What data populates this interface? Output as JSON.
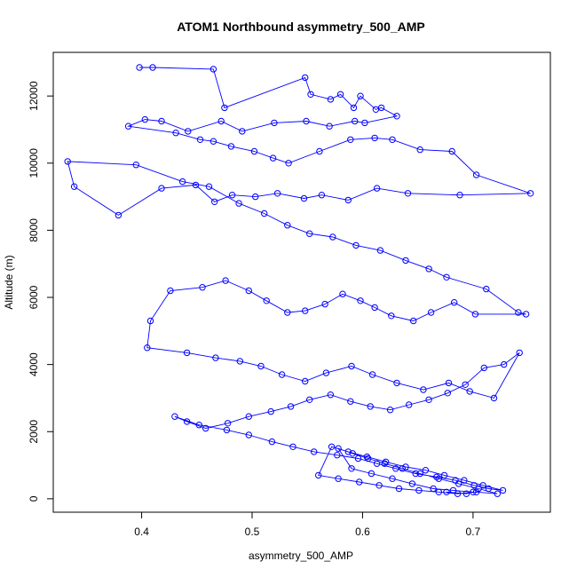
{
  "chart_data": {
    "type": "scatter",
    "title": "ATOM1 Northbound asymmetry_500_AMP",
    "xlabel": "asymmetry_500_AMP",
    "ylabel": "Altitude (m)",
    "xlim": [
      0.32,
      0.77
    ],
    "ylim": [
      -400,
      13300
    ],
    "xticks": [
      0.4,
      0.5,
      0.6,
      0.7
    ],
    "yticks": [
      0,
      2000,
      4000,
      6000,
      8000,
      10000,
      12000
    ],
    "color": "#0000ff",
    "markers": "open-circle",
    "connected": true,
    "grid": false,
    "series": [
      {
        "x": [
          0.398,
          0.41,
          0.465,
          0.475,
          0.548,
          0.553,
          0.571,
          0.58,
          0.592,
          0.598,
          0.612,
          0.617,
          0.631,
          0.602,
          0.593,
          0.57,
          0.549,
          0.52,
          0.491,
          0.472,
          0.442,
          0.418,
          0.403,
          0.388,
          0.431,
          0.453,
          0.465,
          0.481,
          0.502,
          0.519,
          0.533,
          0.561,
          0.589,
          0.611,
          0.627,
          0.652,
          0.681,
          0.703,
          0.752,
          0.688,
          0.641,
          0.613,
          0.587,
          0.563,
          0.547,
          0.523,
          0.503,
          0.482,
          0.466,
          0.449,
          0.418,
          0.379,
          0.339,
          0.333,
          0.395,
          0.437,
          0.461,
          0.488,
          0.511,
          0.532,
          0.552,
          0.573,
          0.594,
          0.616,
          0.639,
          0.66,
          0.676,
          0.712,
          0.741,
          0.748,
          0.702,
          0.683,
          0.662,
          0.646,
          0.626,
          0.611,
          0.598,
          0.582,
          0.566,
          0.548,
          0.532,
          0.513,
          0.497,
          0.476,
          0.455,
          0.426,
          0.408,
          0.405,
          0.441,
          0.467,
          0.489,
          0.508,
          0.527,
          0.548,
          0.567,
          0.59,
          0.609,
          0.631,
          0.655,
          0.678,
          0.697,
          0.719,
          0.742,
          0.728,
          0.71,
          0.693,
          0.677,
          0.66,
          0.642,
          0.625,
          0.607,
          0.589,
          0.571,
          0.552,
          0.535,
          0.517,
          0.497,
          0.478,
          0.458,
          0.441,
          0.43,
          0.452,
          0.477,
          0.497,
          0.518,
          0.537,
          0.556,
          0.577,
          0.596,
          0.613,
          0.63,
          0.648,
          0.667,
          0.684,
          0.701,
          0.714,
          0.727,
          0.709,
          0.692,
          0.674,
          0.657,
          0.639,
          0.621,
          0.604,
          0.587,
          0.572,
          0.56,
          0.578,
          0.597,
          0.615,
          0.633,
          0.651,
          0.669,
          0.686,
          0.703,
          0.722,
          0.705,
          0.687,
          0.669,
          0.652,
          0.636,
          0.62,
          0.605,
          0.591,
          0.578,
          0.59,
          0.608,
          0.627,
          0.645,
          0.664,
          0.682,
          0.7,
          0.694,
          0.676
        ],
        "y": [
          12850,
          12850,
          12800,
          11650,
          12550,
          12050,
          11900,
          12050,
          11650,
          12000,
          11600,
          11650,
          11400,
          11200,
          11250,
          11100,
          11250,
          11200,
          10950,
          11250,
          10950,
          11250,
          11300,
          11100,
          10900,
          10700,
          10650,
          10500,
          10350,
          10150,
          10000,
          10350,
          10700,
          10750,
          10700,
          10400,
          10350,
          9650,
          9100,
          9050,
          9100,
          9250,
          8900,
          9050,
          8950,
          9100,
          9000,
          9050,
          8850,
          9350,
          9250,
          8450,
          9300,
          10050,
          9950,
          9450,
          9300,
          8800,
          8500,
          8150,
          7900,
          7800,
          7550,
          7400,
          7100,
          6850,
          6600,
          6250,
          5550,
          5500,
          5500,
          5850,
          5550,
          5300,
          5450,
          5700,
          5900,
          6100,
          5800,
          5600,
          5550,
          5900,
          6200,
          6500,
          6300,
          6200,
          5300,
          4500,
          4350,
          4200,
          4100,
          3950,
          3700,
          3500,
          3750,
          3950,
          3700,
          3450,
          3250,
          3450,
          3200,
          3000,
          4350,
          4000,
          3900,
          3400,
          3150,
          2950,
          2800,
          2650,
          2750,
          2900,
          3100,
          2950,
          2750,
          2600,
          2450,
          2250,
          2100,
          2300,
          2450,
          2200,
          2050,
          1900,
          1700,
          1550,
          1400,
          1300,
          1200,
          1050,
          900,
          750,
          650,
          550,
          400,
          300,
          250,
          400,
          550,
          700,
          850,
          950,
          1100,
          1250,
          1400,
          1550,
          700,
          600,
          500,
          400,
          300,
          250,
          200,
          150,
          200,
          150,
          300,
          450,
          600,
          750,
          900,
          1050,
          1200,
          1350,
          1500,
          900,
          750,
          600,
          450,
          300,
          250,
          200,
          150,
          200
        ]
      }
    ]
  }
}
